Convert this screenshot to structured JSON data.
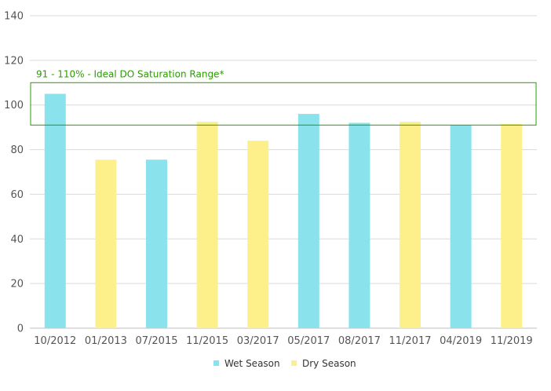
{
  "chart_data": {
    "type": "bar",
    "title": "",
    "xlabel": "",
    "ylabel": "",
    "ylim": [
      0,
      140
    ],
    "yticks": [
      0,
      20,
      40,
      60,
      80,
      100,
      120,
      140
    ],
    "grid": true,
    "legend_position": "bottom-center",
    "categories": [
      "10/2012",
      "01/2013",
      "07/2015",
      "11/2015",
      "03/2017",
      "05/2017",
      "08/2017",
      "11/2017",
      "04/2019",
      "11/2019"
    ],
    "values": [
      105,
      75.5,
      75.5,
      92.5,
      84,
      96,
      92,
      92.5,
      91,
      91.5
    ],
    "season": [
      "wet",
      "dry",
      "wet",
      "dry",
      "dry",
      "wet",
      "wet",
      "dry",
      "wet",
      "dry"
    ],
    "series": [
      {
        "key": "wet",
        "name": "Wet Season",
        "color": "#8ae2ec"
      },
      {
        "key": "dry",
        "name": "Dry Season",
        "color": "#fdf08a"
      }
    ],
    "reference_range": {
      "label": "91 - 110% - Ideal DO Saturation Range*",
      "low": 91,
      "high": 110,
      "color": "#2a9d00"
    }
  }
}
